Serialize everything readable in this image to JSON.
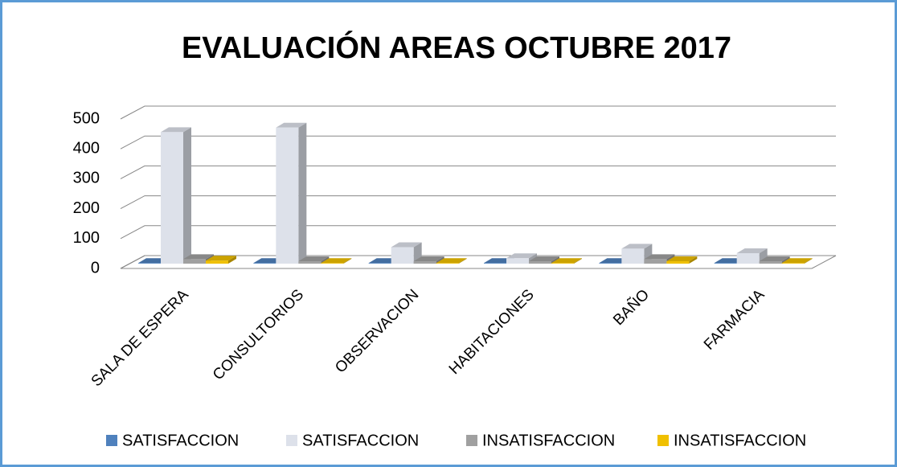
{
  "chart_data": {
    "type": "bar3d",
    "title": "EVALUACIÓN AREAS  OCTUBRE 2017",
    "categories": [
      "SALA DE ESPERA",
      "CONSULTORIOS",
      "OBSERVACION",
      "HABITACIONES",
      "BAÑO",
      "FARMACIA"
    ],
    "series": [
      {
        "name": "SATISFACCION",
        "color": "#4f81bd",
        "values": [
          2,
          2,
          2,
          2,
          2,
          2
        ]
      },
      {
        "name": "SATISFACCION",
        "color": "#dde1ea",
        "values": [
          440,
          455,
          55,
          18,
          50,
          35
        ]
      },
      {
        "name": "INSATISFACCION",
        "color": "#a0a0a0",
        "values": [
          15,
          8,
          8,
          8,
          15,
          8
        ]
      },
      {
        "name": "INSATISFACCION",
        "color": "#f0c000",
        "values": [
          10,
          2,
          2,
          2,
          8,
          2
        ]
      }
    ],
    "ylim": [
      0,
      500
    ],
    "yticks": [
      0,
      100,
      200,
      300,
      400,
      500
    ],
    "grid": true,
    "legend": "bottom"
  }
}
